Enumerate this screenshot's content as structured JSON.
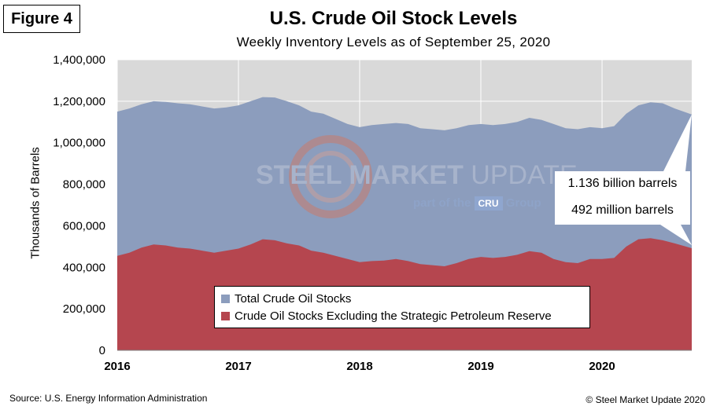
{
  "figure_label": "Figure 4",
  "source": "Source: U.S. Energy Information Administration",
  "copyright": "© Steel Market Update 2020",
  "watermark": {
    "line1a": "STEEL MARKET",
    "line1b": "UPDATE",
    "line2a": "part of the",
    "line2b": "CRU",
    "line2c": "Group"
  },
  "callouts": {
    "total": "1.136 billion barrels",
    "ex_spr": "492 million barrels"
  },
  "colors": {
    "total": "#8c9dbd",
    "ex_spr": "#b5464f",
    "plot_bg": "#d9d9d9",
    "grid": "#ffffff"
  },
  "chart_data": {
    "type": "area",
    "title": "U.S. Crude Oil Stock Levels",
    "subtitle": "Weekly Inventory Levels as of September 25, 2020",
    "xlabel": "",
    "ylabel": "Thousands of Barrels",
    "ylim": [
      0,
      1400000
    ],
    "yticks": [
      "0",
      "200,000",
      "400,000",
      "600,000",
      "800,000",
      "1,000,000",
      "1,200,000",
      "1,400,000"
    ],
    "xticks": [
      "2016",
      "2017",
      "2018",
      "2019",
      "2020"
    ],
    "grid": true,
    "legend": "bottom-center",
    "x": [
      2016.0,
      2016.1,
      2016.2,
      2016.3,
      2016.4,
      2016.5,
      2016.6,
      2016.7,
      2016.8,
      2016.9,
      2017.0,
      2017.1,
      2017.2,
      2017.3,
      2017.4,
      2017.5,
      2017.6,
      2017.7,
      2017.8,
      2017.9,
      2018.0,
      2018.1,
      2018.2,
      2018.3,
      2018.4,
      2018.5,
      2018.6,
      2018.7,
      2018.8,
      2018.9,
      2019.0,
      2019.1,
      2019.2,
      2019.3,
      2019.4,
      2019.5,
      2019.6,
      2019.7,
      2019.8,
      2019.9,
      2020.0,
      2020.1,
      2020.2,
      2020.3,
      2020.4,
      2020.5,
      2020.6,
      2020.74
    ],
    "series": [
      {
        "name": "Total Crude Oil Stocks",
        "values": [
          1150000,
          1165000,
          1185000,
          1200000,
          1197000,
          1190000,
          1185000,
          1175000,
          1165000,
          1170000,
          1180000,
          1200000,
          1220000,
          1218000,
          1200000,
          1180000,
          1150000,
          1140000,
          1115000,
          1090000,
          1075000,
          1085000,
          1090000,
          1095000,
          1090000,
          1070000,
          1065000,
          1060000,
          1070000,
          1085000,
          1090000,
          1085000,
          1090000,
          1100000,
          1120000,
          1110000,
          1090000,
          1070000,
          1065000,
          1075000,
          1070000,
          1080000,
          1140000,
          1180000,
          1195000,
          1190000,
          1165000,
          1136000
        ]
      },
      {
        "name": "Crude Oil Stocks Excluding the Strategic Petroleum Reserve",
        "values": [
          455000,
          470000,
          495000,
          510000,
          505000,
          495000,
          490000,
          480000,
          470000,
          480000,
          490000,
          510000,
          535000,
          530000,
          515000,
          505000,
          480000,
          470000,
          455000,
          440000,
          425000,
          430000,
          432000,
          440000,
          430000,
          415000,
          410000,
          405000,
          420000,
          440000,
          450000,
          445000,
          450000,
          460000,
          478000,
          470000,
          440000,
          425000,
          420000,
          440000,
          440000,
          445000,
          500000,
          535000,
          540000,
          530000,
          515000,
          492000
        ]
      }
    ]
  }
}
